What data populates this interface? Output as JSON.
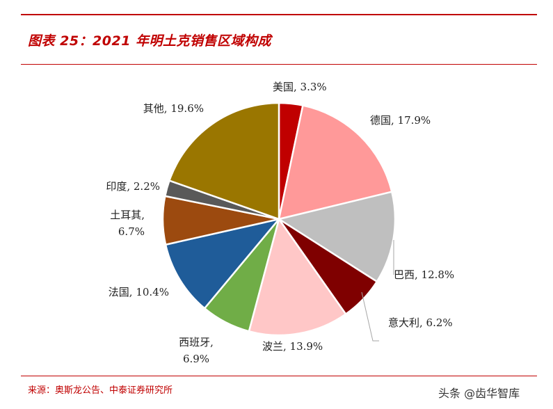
{
  "header": {
    "title": "图表 25：2021 年明土克销售区域构成"
  },
  "footer": {
    "source": "来源：奥斯龙公告、中泰证券研究所",
    "watermark": "头条 @齿华智库"
  },
  "colors": {
    "accent": "#c00000"
  },
  "chart_data": {
    "type": "pie",
    "title": "",
    "start_angle_deg": 0,
    "direction": "clockwise",
    "slices": [
      {
        "label": "美国",
        "value": 3.3,
        "display": "美国, 3.3%",
        "color": "#c00000"
      },
      {
        "label": "德国",
        "value": 17.9,
        "display": "德国, 17.9%",
        "color": "#ff9999"
      },
      {
        "label": "巴西",
        "value": 12.8,
        "display": "巴西, 12.8%",
        "color": "#bfbfbf"
      },
      {
        "label": "意大利",
        "value": 6.2,
        "display": "意大利, 6.2%",
        "color": "#7f0000"
      },
      {
        "label": "波兰",
        "value": 13.9,
        "display": "波兰, 13.9%",
        "color": "#ffc7c7"
      },
      {
        "label": "西班牙",
        "value": 6.9,
        "display": [
          "西班牙,",
          "6.9%"
        ],
        "color": "#70ad47"
      },
      {
        "label": "法国",
        "value": 10.4,
        "display": "法国, 10.4%",
        "color": "#1f5c99"
      },
      {
        "label": "土耳其",
        "value": 6.7,
        "display": [
          "土耳其,",
          "6.7%"
        ],
        "color": "#9c4a0f"
      },
      {
        "label": "印度",
        "value": 2.2,
        "display": "印度, 2.2%",
        "color": "#595959"
      },
      {
        "label": "其他",
        "value": 19.6,
        "display": "其他, 19.6%",
        "color": "#9a7600"
      }
    ]
  }
}
